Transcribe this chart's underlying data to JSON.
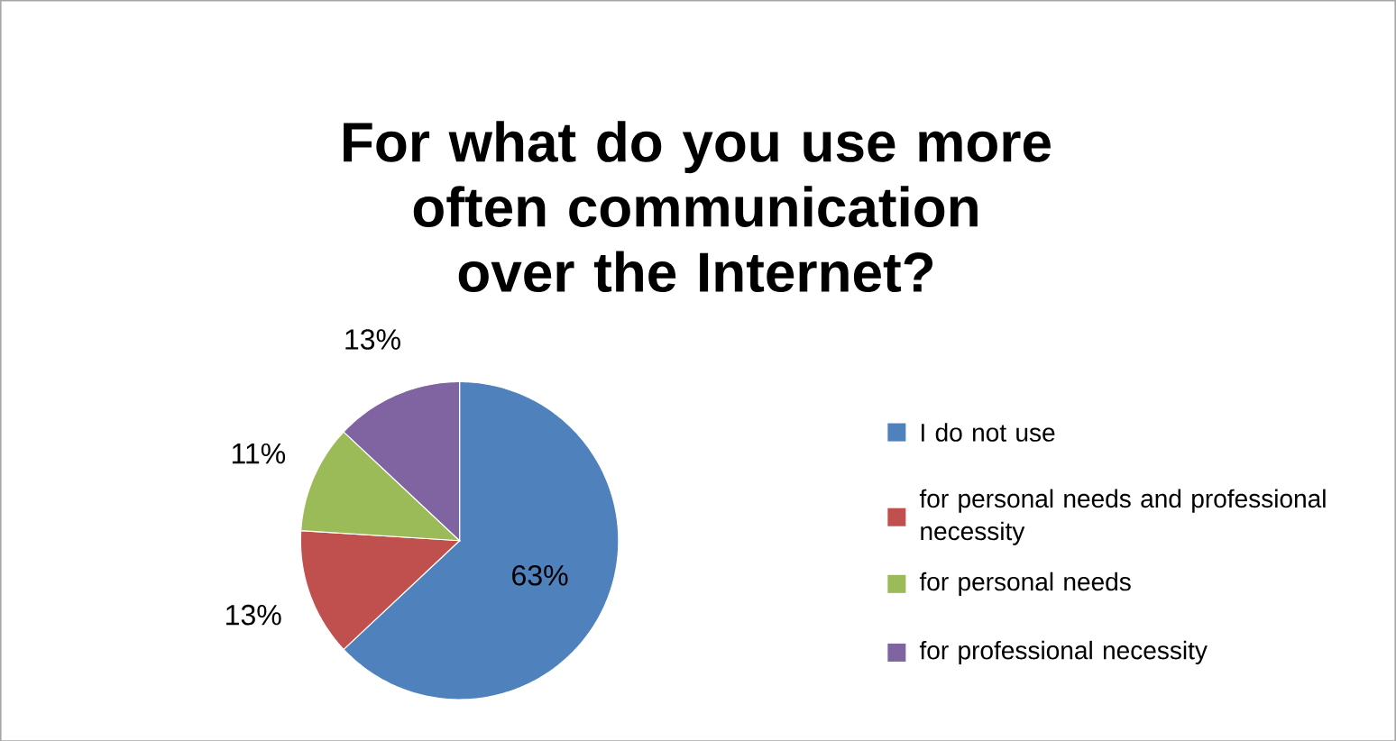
{
  "chart_data": {
    "type": "pie",
    "title": "For what do you use more often communication over the Internet?",
    "categories": [
      "I do not use",
      "for personal needs and professional necessity",
      "for personal needs",
      "for professional necessity"
    ],
    "values": [
      63,
      13,
      11,
      13
    ],
    "colors": [
      "#4f81bd",
      "#c0504d",
      "#9bbb59",
      "#8064a2"
    ],
    "value_labels": [
      "63%",
      "13%",
      "11%",
      "13%"
    ],
    "legend": "right"
  }
}
